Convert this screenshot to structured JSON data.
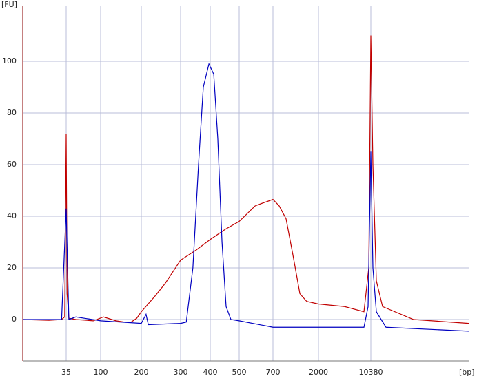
{
  "chart_data": {
    "type": "line",
    "y_label": "[FU]",
    "x_label": "[bp]",
    "xlim": [
      15,
      40000
    ],
    "xticks": [
      35,
      100,
      200,
      300,
      400,
      500,
      700,
      2000,
      10380
    ],
    "ylim": [
      -16,
      120
    ],
    "yticks": [
      0,
      20,
      40,
      60,
      80,
      100
    ],
    "grid": true,
    "series": [
      {
        "color": "#c00000",
        "x": [
          15,
          25,
          32,
          34,
          35,
          36,
          38,
          47,
          80,
          105,
          130,
          150,
          168,
          185,
          200,
          230,
          256,
          300,
          350,
          400,
          450,
          500,
          586,
          650,
          700,
          808,
          947,
          1110,
          1303,
          1526,
          2000,
          4557,
          8360,
          9730,
          10380,
          10680,
          11200,
          12200,
          18700,
          40000
        ],
        "values": [
          0,
          -0.3,
          0,
          1,
          72,
          10,
          0.5,
          0,
          -0.5,
          1,
          -0.5,
          -1,
          -1,
          0.5,
          3,
          9,
          14,
          23,
          27,
          31,
          35,
          38,
          44,
          45.5,
          46.5,
          44,
          39,
          25,
          10,
          7,
          6,
          5,
          3,
          20,
          110,
          60,
          15,
          5,
          0,
          -1.5
        ]
      },
      {
        "color": "#0000c0",
        "x": [
          15,
          32,
          35,
          35.7,
          38,
          47,
          100,
          200,
          210,
          215,
          300,
          317,
          338,
          357,
          374,
          395,
          411,
          424,
          438,
          452,
          469,
          500,
          700,
          2000,
          8360,
          9520,
          10380,
          10680,
          11200,
          12790,
          40000
        ],
        "values": [
          0,
          0,
          43,
          32,
          0,
          1,
          -0.5,
          -1.5,
          2,
          -2,
          -1.5,
          -1,
          20,
          60,
          90,
          99,
          95,
          70,
          30,
          5,
          0,
          -0.5,
          -3,
          -3,
          -3,
          5,
          65,
          20,
          3,
          -3,
          -4.5
        ]
      }
    ]
  }
}
